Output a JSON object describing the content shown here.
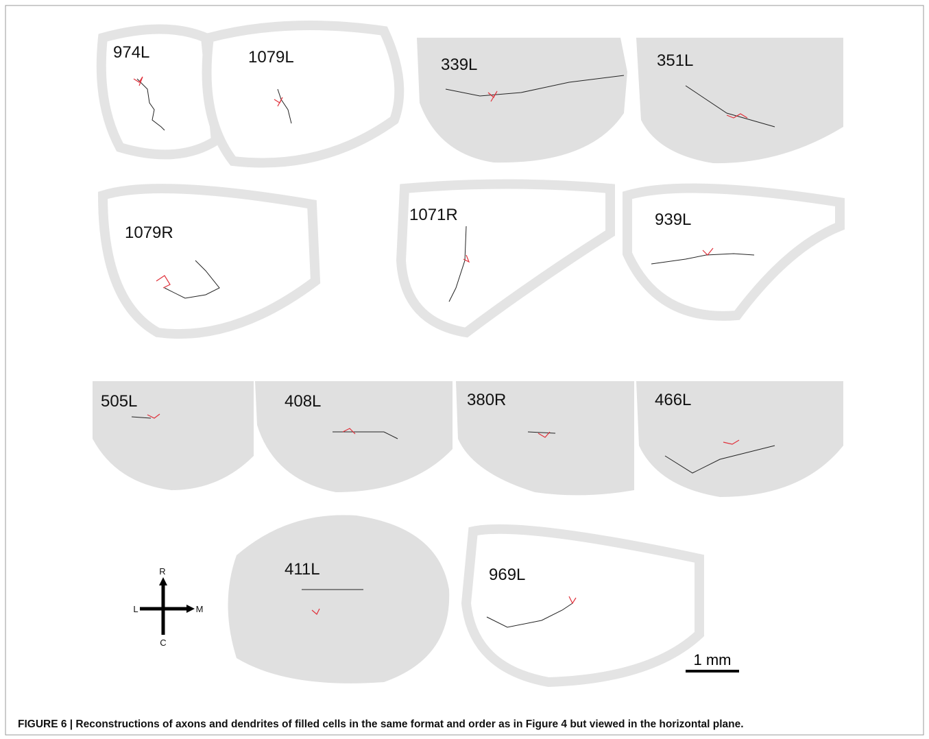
{
  "panels": [
    {
      "label": "974L"
    },
    {
      "label": "1079L"
    },
    {
      "label": "339L"
    },
    {
      "label": "351L"
    },
    {
      "label": "1079R"
    },
    {
      "label": "1071R"
    },
    {
      "label": "939L"
    },
    {
      "label": "505L"
    },
    {
      "label": "408L"
    },
    {
      "label": "380R"
    },
    {
      "label": "466L"
    },
    {
      "label": "411L"
    },
    {
      "label": "969L"
    }
  ],
  "orientation": {
    "rostral": "R",
    "caudal": "C",
    "lateral": "L",
    "medial": "M"
  },
  "scale_bar": "1 mm",
  "caption": "FIGURE 6 | Reconstructions of axons and dendrites of filled cells in the same format and order as in Figure 4 but viewed in the horizontal plane."
}
